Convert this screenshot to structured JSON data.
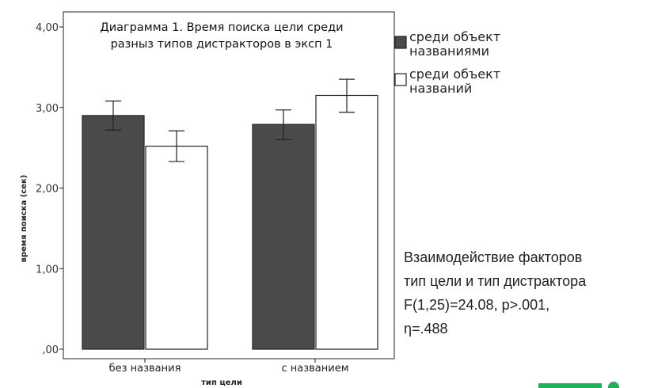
{
  "chart_data": {
    "type": "bar",
    "title_lines": [
      "Диаграмма 1. Время поиска цели среди",
      "разныз типов дистракторов в эксп 1"
    ],
    "xlabel": "тип цели",
    "ylabel": "время поиска (сек)",
    "categories": [
      "без названия",
      "с названием"
    ],
    "ylim": [
      0,
      4
    ],
    "yticks": [
      0,
      1,
      2,
      3,
      4
    ],
    "ytick_labels": [
      ",00",
      "1,00",
      "2,00",
      "3,00",
      "4,00"
    ],
    "grid": false,
    "legend_position": "right",
    "series": [
      {
        "name_lines": [
          "среди объект",
          "названиями"
        ],
        "color": "#4a4a4a",
        "values": [
          2.9,
          2.79
        ],
        "error_low": [
          2.72,
          2.6
        ],
        "error_high": [
          3.08,
          2.97
        ]
      },
      {
        "name_lines": [
          "среди объект",
          "названий"
        ],
        "color": "#ffffff",
        "values": [
          2.52,
          3.15
        ],
        "error_low": [
          2.33,
          2.94
        ],
        "error_high": [
          2.71,
          3.35
        ]
      }
    ]
  },
  "stats": {
    "lines": [
      "Взаимодействие факторов",
      "тип цели и тип дистрактора",
      "F(1,25)=24.08, p>.001,",
      "η=.488"
    ]
  }
}
